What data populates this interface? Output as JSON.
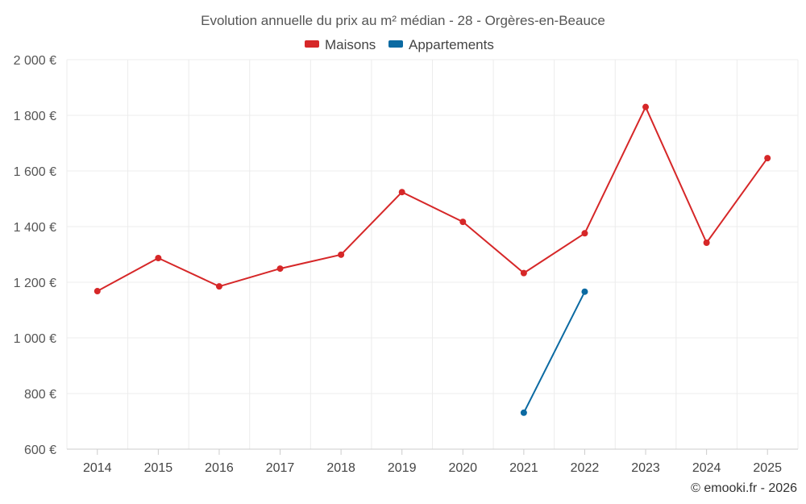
{
  "chart_data": {
    "type": "line",
    "title": "Evolution annuelle du prix au m² médian - 28 - Orgères-en-Beauce",
    "categories": [
      "2014",
      "2015",
      "2016",
      "2017",
      "2018",
      "2019",
      "2020",
      "2021",
      "2022",
      "2023",
      "2024",
      "2025"
    ],
    "series": [
      {
        "name": "Maisons",
        "color": "#d62728",
        "values": [
          1168,
          1287,
          1185,
          1249,
          1299,
          1524,
          1417,
          1233,
          1376,
          1830,
          1342,
          1646
        ]
      },
      {
        "name": "Appartements",
        "color": "#0b6aa2",
        "values": [
          null,
          null,
          null,
          null,
          null,
          null,
          null,
          731,
          1166,
          null,
          null,
          null
        ]
      }
    ],
    "ylim": [
      600,
      2000
    ],
    "yticks": [
      600,
      800,
      1000,
      1200,
      1400,
      1600,
      1800,
      2000
    ],
    "ytick_labels": [
      "600 €",
      "800 €",
      "1 000 €",
      "1 200 €",
      "1 400 €",
      "1 600 €",
      "1 800 €",
      "2 000 €"
    ],
    "legend_position": "top-center",
    "grid": true
  },
  "credit": "© emooki.fr - 2026"
}
